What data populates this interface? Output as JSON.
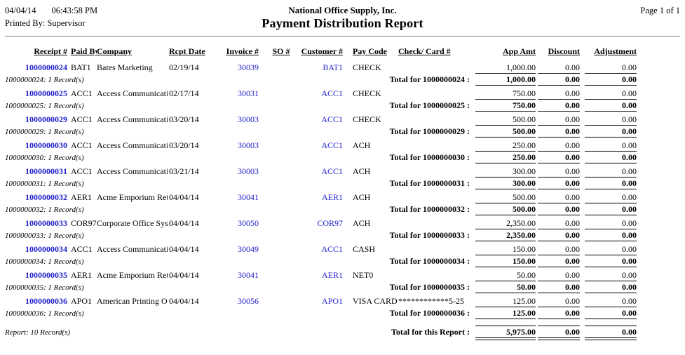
{
  "header": {
    "date": "04/04/14",
    "time": "06:43:58 PM",
    "printed_by": "Printed By: Supervisor",
    "company_name": "National Office Supply, Inc.",
    "report_title": "Payment Distribution Report",
    "page_info": "Page 1 of 1"
  },
  "columns": {
    "receipt": "Receipt #",
    "paid_by": "Paid By",
    "company": "Company",
    "rcpt_date": "Rcpt Date",
    "invoice": "Invoice #",
    "so": "SO #",
    "customer": "Customer #",
    "pay_code": "Pay Code",
    "check_card": "Check/ Card #",
    "app_amt": "App Amt",
    "discount": "Discount",
    "adjustment": "Adjustment"
  },
  "groups": [
    {
      "receipt": "1000000024",
      "paid_by": "BAT1",
      "company": "Bates Marketing",
      "rcpt_date": "02/19/14",
      "invoice": "30039",
      "so": "",
      "customer": "BAT1",
      "pay_code": "CHECK",
      "check_card": "",
      "app_amt": "1,000.00",
      "discount": "0.00",
      "adjustment": "0.00",
      "record_note": "1000000024: 1 Record(s)",
      "total_label": "Total for 1000000024 :",
      "total_app_amt": "1,000.00",
      "total_discount": "0.00",
      "total_adjustment": "0.00"
    },
    {
      "receipt": "1000000025",
      "paid_by": "ACC1",
      "company": "Access Communication",
      "rcpt_date": "02/17/14",
      "invoice": "30031",
      "so": "",
      "customer": "ACC1",
      "pay_code": "CHECK",
      "check_card": "",
      "app_amt": "750.00",
      "discount": "0.00",
      "adjustment": "0.00",
      "record_note": "1000000025: 1 Record(s)",
      "total_label": "Total for 1000000025 :",
      "total_app_amt": "750.00",
      "total_discount": "0.00",
      "total_adjustment": "0.00"
    },
    {
      "receipt": "1000000029",
      "paid_by": "ACC1",
      "company": "Access Communication",
      "rcpt_date": "03/20/14",
      "invoice": "30003",
      "so": "",
      "customer": "ACC1",
      "pay_code": "CHECK",
      "check_card": "",
      "app_amt": "500.00",
      "discount": "0.00",
      "adjustment": "0.00",
      "record_note": "1000000029: 1 Record(s)",
      "total_label": "Total for 1000000029 :",
      "total_app_amt": "500.00",
      "total_discount": "0.00",
      "total_adjustment": "0.00"
    },
    {
      "receipt": "1000000030",
      "paid_by": "ACC1",
      "company": "Access Communication",
      "rcpt_date": "03/20/14",
      "invoice": "30003",
      "so": "",
      "customer": "ACC1",
      "pay_code": "ACH",
      "check_card": "",
      "app_amt": "250.00",
      "discount": "0.00",
      "adjustment": "0.00",
      "record_note": "1000000030: 1 Record(s)",
      "total_label": "Total for 1000000030 :",
      "total_app_amt": "250.00",
      "total_discount": "0.00",
      "total_adjustment": "0.00"
    },
    {
      "receipt": "1000000031",
      "paid_by": "ACC1",
      "company": "Access Communication",
      "rcpt_date": "03/21/14",
      "invoice": "30003",
      "so": "",
      "customer": "ACC1",
      "pay_code": "ACH",
      "check_card": "",
      "app_amt": "300.00",
      "discount": "0.00",
      "adjustment": "0.00",
      "record_note": "1000000031: 1 Record(s)",
      "total_label": "Total for 1000000031 :",
      "total_app_amt": "300.00",
      "total_discount": "0.00",
      "total_adjustment": "0.00"
    },
    {
      "receipt": "1000000032",
      "paid_by": "AER1",
      "company": "Acme Emporium Retail",
      "rcpt_date": "04/04/14",
      "invoice": "30041",
      "so": "",
      "customer": "AER1",
      "pay_code": "ACH",
      "check_card": "",
      "app_amt": "500.00",
      "discount": "0.00",
      "adjustment": "0.00",
      "record_note": "1000000032: 1 Record(s)",
      "total_label": "Total for 1000000032 :",
      "total_app_amt": "500.00",
      "total_discount": "0.00",
      "total_adjustment": "0.00"
    },
    {
      "receipt": "1000000033",
      "paid_by": "COR97",
      "company": "Corporate Office System",
      "rcpt_date": "04/04/14",
      "invoice": "30050",
      "so": "",
      "customer": "COR97",
      "pay_code": "ACH",
      "check_card": "",
      "app_amt": "2,350.00",
      "discount": "0.00",
      "adjustment": "0.00",
      "record_note": "1000000033: 1 Record(s)",
      "total_label": "Total for 1000000033 :",
      "total_app_amt": "2,350.00",
      "total_discount": "0.00",
      "total_adjustment": "0.00"
    },
    {
      "receipt": "1000000034",
      "paid_by": "ACC1",
      "company": "Access Communication",
      "rcpt_date": "04/04/14",
      "invoice": "30049",
      "so": "",
      "customer": "ACC1",
      "pay_code": "CASH",
      "check_card": "",
      "app_amt": "150.00",
      "discount": "0.00",
      "adjustment": "0.00",
      "record_note": "1000000034: 1 Record(s)",
      "total_label": "Total for 1000000034 :",
      "total_app_amt": "150.00",
      "total_discount": "0.00",
      "total_adjustment": "0.00"
    },
    {
      "receipt": "1000000035",
      "paid_by": "AER1",
      "company": "Acme Emporium Retail",
      "rcpt_date": "04/04/14",
      "invoice": "30041",
      "so": "",
      "customer": "AER1",
      "pay_code": "NET0",
      "check_card": "",
      "app_amt": "50.00",
      "discount": "0.00",
      "adjustment": "0.00",
      "record_note": "1000000035: 1 Record(s)",
      "total_label": "Total for 1000000035 :",
      "total_app_amt": "50.00",
      "total_discount": "0.00",
      "total_adjustment": "0.00"
    },
    {
      "receipt": "1000000036",
      "paid_by": "APO1",
      "company": "American Printing Org",
      "rcpt_date": "04/04/14",
      "invoice": "30056",
      "so": "",
      "customer": "APO1",
      "pay_code": "VISA CARD",
      "check_card": "************5-25",
      "app_amt": "125.00",
      "discount": "0.00",
      "adjustment": "0.00",
      "record_note": "1000000036: 1 Record(s)",
      "total_label": "Total for 1000000036 :",
      "total_app_amt": "125.00",
      "total_discount": "0.00",
      "total_adjustment": "0.00"
    }
  ],
  "footer": {
    "report_note": "Report: 10 Record(s)",
    "total_label": "Total for this Report :",
    "app_amt": "5,975.00",
    "discount": "0.00",
    "adjustment": "0.00"
  },
  "colors": {
    "link_blue": "#2323CB",
    "rule_gray": "#777777"
  }
}
